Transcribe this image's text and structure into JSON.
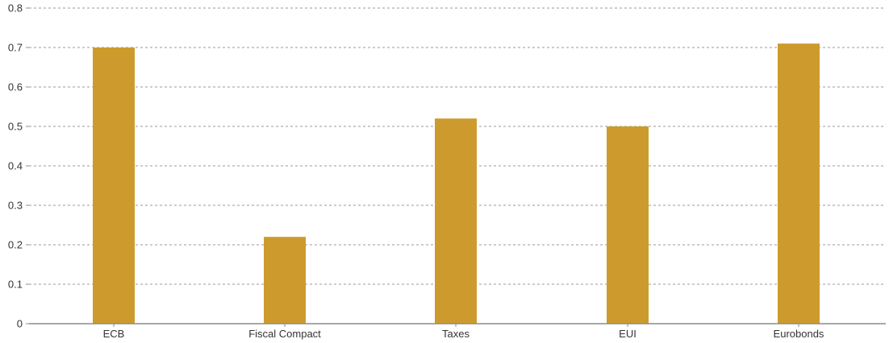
{
  "chart_data": {
    "type": "bar",
    "categories": [
      "ECB",
      "Fiscal Compact",
      "Taxes",
      "EUI",
      "Eurobonds"
    ],
    "values": [
      0.7,
      0.22,
      0.52,
      0.5,
      0.71
    ],
    "title": "",
    "xlabel": "",
    "ylabel": "",
    "ylim": [
      0,
      0.8
    ],
    "yticks": [
      "0",
      "0.1",
      "0.2",
      "0.3",
      "0.4",
      "0.5",
      "0.6",
      "0.7",
      "0.8"
    ],
    "grid": true,
    "bar_color": "#CD9B2D"
  }
}
